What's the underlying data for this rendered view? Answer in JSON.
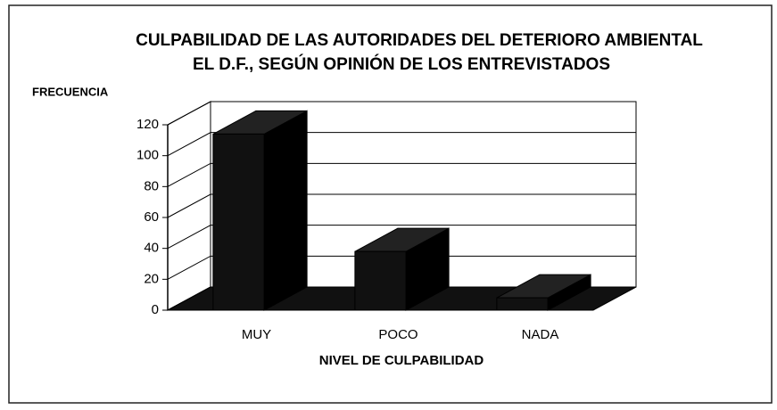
{
  "chart_data": {
    "type": "bar3d",
    "title": [
      "CULPABILIDAD DE LAS AUTORIDADES DEL DETERIORO AMBIENTAL",
      "EL D.F., SEGÚN OPINIÓN DE LOS ENTREVISTADOS"
    ],
    "ylabel": "FRECUENCIA",
    "xlabel": "NIVEL DE CULPABILIDAD",
    "categories": [
      "MUY",
      "POCO",
      "NADA"
    ],
    "values": [
      114,
      38,
      8
    ],
    "color": "#111111",
    "ylim": [
      0,
      120
    ],
    "yticks": [
      0,
      20,
      40,
      60,
      80,
      100,
      120
    ],
    "grid": true
  }
}
